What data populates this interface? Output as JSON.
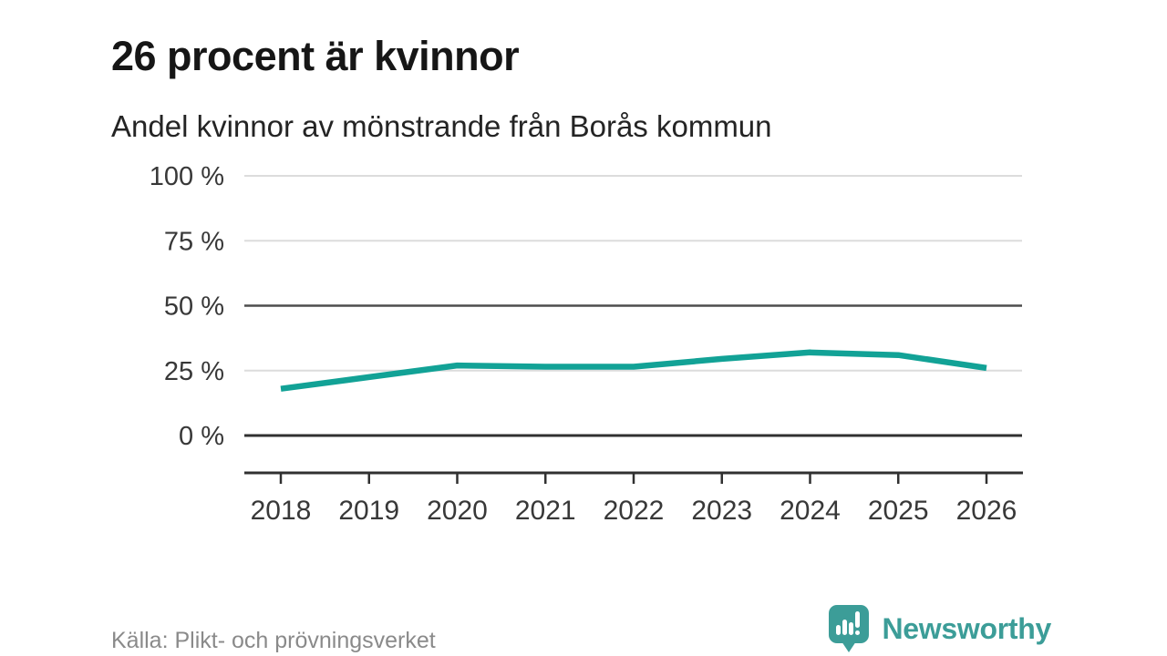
{
  "header": {
    "title": "26 procent är kvinnor",
    "subtitle": "Andel kvinnor av mönstrande från Borås kommun"
  },
  "chart_data": {
    "type": "line",
    "title": "26 procent är kvinnor",
    "subtitle": "Andel kvinnor av mönstrande från Borås kommun",
    "x": [
      "2018",
      "2019",
      "2020",
      "2021",
      "2022",
      "2023",
      "2024",
      "2025",
      "2026"
    ],
    "series": [
      {
        "name": "Andel kvinnor av mönstrande (%)",
        "values": [
          18,
          22.5,
          27,
          26.5,
          26.5,
          29.5,
          32,
          31,
          26
        ]
      }
    ],
    "ylim": [
      0,
      100
    ],
    "yticks": [
      {
        "value": 0,
        "label": "0 %",
        "emphasis": true
      },
      {
        "value": 25,
        "label": "25 %",
        "emphasis": false
      },
      {
        "value": 50,
        "label": "50 %",
        "emphasis": true
      },
      {
        "value": 75,
        "label": "75 %",
        "emphasis": false
      },
      {
        "value": 100,
        "label": "100 %",
        "emphasis": false
      }
    ],
    "grid": "horizontal",
    "legend": "none",
    "colors": {
      "line": "#12a296",
      "grid_light": "#dcdcdc",
      "grid_dark": "#4d4d4d",
      "axis": "#303030",
      "tick_text": "#383838"
    }
  },
  "footer": {
    "source": "Källa: Plikt- och prövningsverket",
    "brand": {
      "name": "Newsworthy",
      "color": "#3c9d98"
    }
  }
}
